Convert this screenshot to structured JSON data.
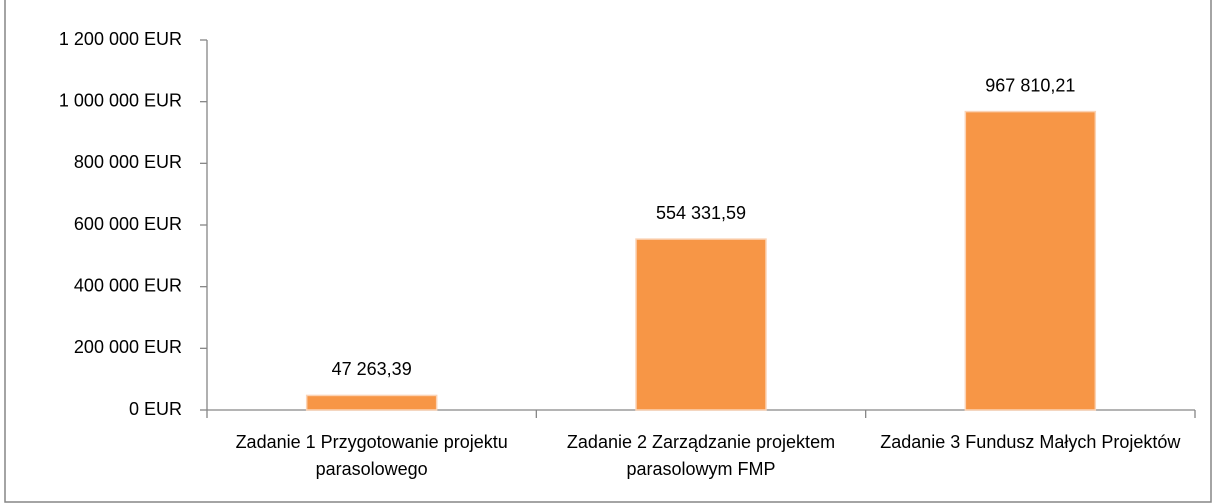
{
  "chart_data": {
    "type": "bar",
    "categories": [
      "Zadanie 1 Przygotowanie projektu parasolowego",
      "Zadanie 2 Zarządzanie projektem parasolowym FMP",
      "Zadanie 3 Fundusz Małych Projektów"
    ],
    "values": [
      47263.39,
      554331.59,
      967810.21
    ],
    "value_labels": [
      "47 263,39",
      "554 331,59",
      "967 810,21"
    ],
    "color": "#f79646",
    "ylim": [
      0,
      1200000
    ],
    "yticks": [
      {
        "value": 0,
        "label": "0 EUR"
      },
      {
        "value": 200000,
        "label": "200 000 EUR"
      },
      {
        "value": 400000,
        "label": "400 000 EUR"
      },
      {
        "value": 600000,
        "label": "600 000 EUR"
      },
      {
        "value": 800000,
        "label": "800 000 EUR"
      },
      {
        "value": 1000000,
        "label": "1 000 000 EUR"
      },
      {
        "value": 1200000,
        "label": "1 200 000 EUR"
      }
    ],
    "grid": false
  }
}
